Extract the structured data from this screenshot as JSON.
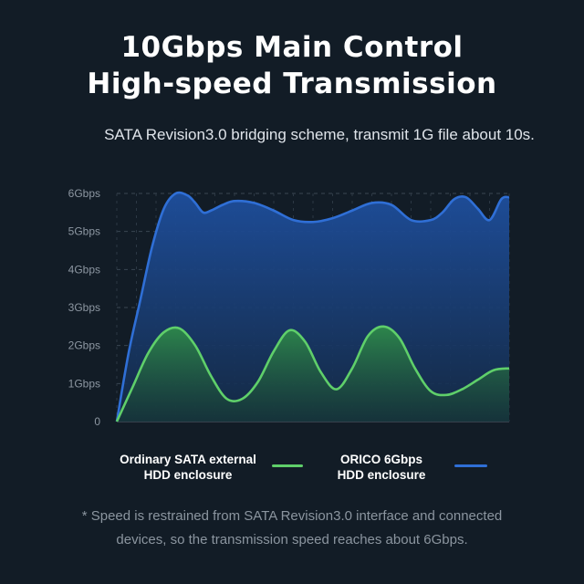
{
  "header": {
    "title_line1": "10Gbps Main Control",
    "title_line2": "High-speed Transmission",
    "subtitle": "SATA Revision3.0 bridging scheme, transmit 1G file about 10s."
  },
  "legend": {
    "series1_line1": "Ordinary SATA external",
    "series1_line2": "HDD enclosure",
    "series2_line1": "ORICO 6Gbps",
    "series2_line2": "HDD enclosure"
  },
  "footnote": {
    "line1": "* Speed is restrained from SATA Revision3.0 interface and connected",
    "line2": "devices, so the transmission speed reaches about 6Gbps."
  },
  "colors": {
    "background": "#121c26",
    "orico": "#2f6fd6",
    "ordinary": "#5fcf6a"
  },
  "chart_data": {
    "type": "area",
    "ylim": [
      0,
      6
    ],
    "xlim": [
      0,
      100
    ],
    "y_ticks": [
      {
        "value": 0,
        "label": "0"
      },
      {
        "value": 1,
        "label": "1Gbps"
      },
      {
        "value": 2,
        "label": "2Gbps"
      },
      {
        "value": 3,
        "label": "3Gbps"
      },
      {
        "value": 4,
        "label": "4Gbps"
      },
      {
        "value": 5,
        "label": "5Gbps"
      },
      {
        "value": 6,
        "label": "6Gbps"
      }
    ],
    "grid": true,
    "series": [
      {
        "name": "ORICO 6Gbps HDD enclosure",
        "color": "#2f6fd6",
        "x": [
          0,
          3,
          6,
          9,
          12,
          15,
          18,
          20,
          22,
          24,
          27,
          30,
          35,
          40,
          45,
          50,
          55,
          60,
          65,
          70,
          75,
          80,
          83,
          86,
          89,
          92,
          95,
          98,
          100
        ],
        "y": [
          0,
          1.8,
          3.2,
          4.6,
          5.6,
          6.0,
          5.95,
          5.75,
          5.5,
          5.55,
          5.7,
          5.8,
          5.75,
          5.55,
          5.3,
          5.25,
          5.35,
          5.55,
          5.75,
          5.7,
          5.3,
          5.3,
          5.5,
          5.85,
          5.9,
          5.6,
          5.3,
          5.85,
          5.9
        ]
      },
      {
        "name": "Ordinary SATA external HDD enclosure",
        "color": "#5fcf6a",
        "x": [
          0,
          4,
          8,
          12,
          16,
          20,
          24,
          28,
          32,
          36,
          40,
          44,
          48,
          52,
          56,
          60,
          64,
          68,
          72,
          76,
          80,
          84,
          88,
          92,
          96,
          100
        ],
        "y": [
          0,
          0.9,
          1.8,
          2.35,
          2.45,
          2.0,
          1.2,
          0.6,
          0.6,
          1.05,
          1.85,
          2.4,
          2.1,
          1.3,
          0.85,
          1.4,
          2.25,
          2.5,
          2.2,
          1.4,
          0.8,
          0.7,
          0.85,
          1.1,
          1.35,
          1.4
        ]
      }
    ]
  }
}
